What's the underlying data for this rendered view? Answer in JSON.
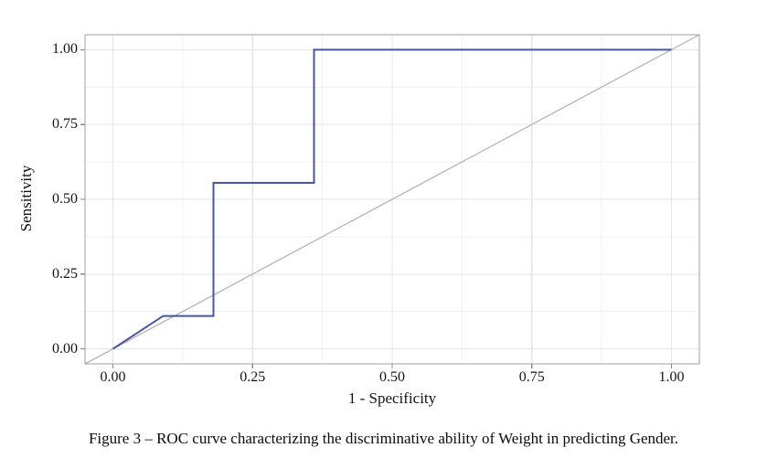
{
  "figure": {
    "caption": "Figure 3 – ROC curve characterizing the discriminative ability of Weight  in predicting Gender."
  },
  "colors": {
    "roc_line": "#4656a8",
    "diagonal_line": "#b5b5b5",
    "panel_border": "#a0a0a0",
    "grid_major": "#e5e5e5",
    "grid_minor": "#f2f2f2",
    "tick_mark": "#8a8a8a",
    "background": "#ffffff",
    "text": "#141414"
  },
  "chart_data": {
    "type": "line",
    "title": "",
    "xlabel": "1 - Specificity",
    "ylabel": "Sensitivity",
    "xlim": [
      -0.05,
      1.05
    ],
    "ylim": [
      -0.05,
      1.05
    ],
    "x_ticks": [
      "0.00",
      "0.25",
      "0.50",
      "0.75",
      "1.00"
    ],
    "y_ticks": [
      "0.00",
      "0.25",
      "0.50",
      "0.75",
      "1.00"
    ],
    "x_tick_values": [
      0,
      0.25,
      0.5,
      0.75,
      1
    ],
    "y_tick_values": [
      0,
      0.25,
      0.5,
      0.75,
      1
    ],
    "minor_tick_values": [
      0.125,
      0.375,
      0.625,
      0.875
    ],
    "grid": "major+minor",
    "legend": "none",
    "series": [
      {
        "name": "ROC curve",
        "color": "#4656a8",
        "width": 2,
        "points": [
          [
            0,
            0
          ],
          [
            0.09,
            0.11
          ],
          [
            0.18,
            0.11
          ],
          [
            0.18,
            0.555
          ],
          [
            0.36,
            0.555
          ],
          [
            0.36,
            1.0
          ],
          [
            1.0,
            1.0
          ]
        ]
      },
      {
        "name": "Chance diagonal",
        "color": "#b5b5b5",
        "width": 1.3,
        "points": [
          [
            -0.05,
            -0.05
          ],
          [
            1.05,
            1.05
          ]
        ]
      }
    ]
  }
}
